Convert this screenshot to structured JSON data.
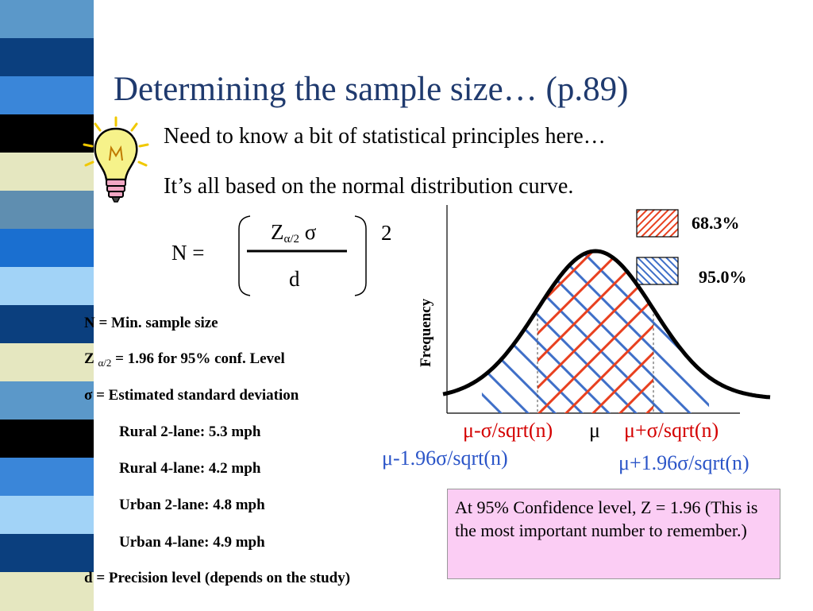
{
  "slide": {
    "title": "Determining the sample size… (p.89)",
    "bullet_1": "Need to know a bit of statistical principles here…",
    "bullet_2": "It’s all based on the normal distribution curve."
  },
  "formula": {
    "lhs": "N =",
    "numerator_z": "Z",
    "numerator_sub": "α/2",
    "numerator_sigma": "σ",
    "denominator": "d",
    "exponent": "2"
  },
  "definitions": {
    "n_def": "N = Min. sample size",
    "z_prefix": "Z",
    "z_sub": "α/2",
    "z_rest": "= 1.96 for 95% conf. Level",
    "sigma_def": "σ = Estimated standard deviation",
    "rural_2": "Rural 2-lane: 5.3 mph",
    "rural_4": "Rural 4-lane: 4.2 mph",
    "urban_2": "Urban 2-lane: 4.8 mph",
    "urban_4": "Urban 4-lane: 4.9 mph",
    "d_def": "d = Precision level (depends on the study)"
  },
  "chart": {
    "ylabel": "Frequency",
    "legend_683": "68.3%",
    "legend_950": "95.0%",
    "label_minus_sigma": "μ-σ/sqrt(n)",
    "label_mu": "μ",
    "label_plus_sigma": "μ+σ/sqrt(n)",
    "label_minus_196": "μ-1.96σ/sqrt(n)",
    "label_plus_196": "μ+1.96σ/sqrt(n)",
    "colors": {
      "red_hatch": "#e8401f",
      "blue_hatch": "#3f6fc8",
      "curve": "#000000"
    }
  },
  "note": {
    "text": "At 95% Confidence level, Z = 1.96 (This is the most important number to remember.)"
  },
  "decor": {
    "stripe_colors": [
      "#5b98c9",
      "#0b3f7e",
      "#3a86d9",
      "#000000",
      "#e5e7c0",
      "#5f8eb0",
      "#1a6fd0",
      "#a2d3f7",
      "#0b3f7e",
      "#e5e7c0",
      "#5b98c9",
      "#000000",
      "#3a86d9",
      "#a2d3f7",
      "#0b3f7e",
      "#e5e7c0"
    ],
    "bulb_icon": "lightbulb-icon"
  }
}
